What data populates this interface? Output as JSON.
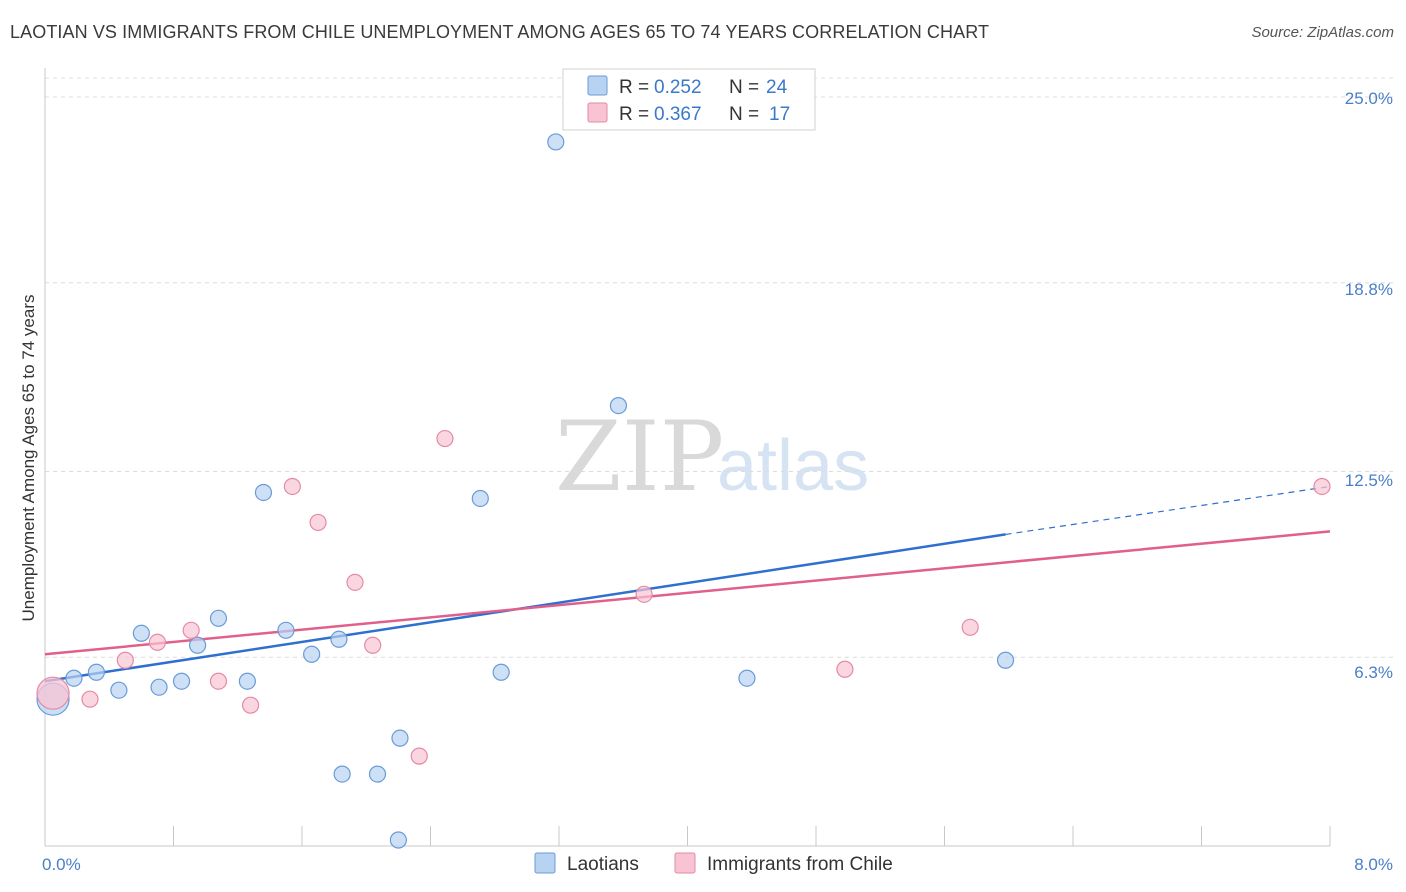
{
  "title": "LAOTIAN VS IMMIGRANTS FROM CHILE UNEMPLOYMENT AMONG AGES 65 TO 74 YEARS CORRELATION CHART",
  "source": "Source: ZipAtlas.com",
  "watermark": {
    "part1": "ZIP",
    "part2": "atlas"
  },
  "colors": {
    "laotian_fill": "#b8d3f2",
    "laotian_stroke": "#6a9bd8",
    "laotian_line": "#2f6fcf",
    "chile_fill": "#f8c4d4",
    "chile_stroke": "#e58aa6",
    "chile_line": "#e0608c",
    "grid": "#dcdcdc",
    "axis_label": "#4a7fc8"
  },
  "legend": {
    "rows": [
      {
        "r_label": "R =",
        "r_value": "0.252",
        "n_label": "N =",
        "n_value": "24"
      },
      {
        "r_label": "R =",
        "r_value": "0.367",
        "n_label": "N =",
        "n_value": "17"
      }
    ]
  },
  "chart_data": {
    "type": "scatter",
    "title": "LAOTIAN VS IMMIGRANTS FROM CHILE UNEMPLOYMENT AMONG AGES 65 TO 74 YEARS CORRELATION CHART",
    "xlabel": "",
    "ylabel": "Unemployment Among Ages 65 to 74 years",
    "xlim": [
      0,
      8.0
    ],
    "ylim": [
      0,
      25.0
    ],
    "x_tick_labels": [
      "0.0%",
      "8.0%"
    ],
    "y_tick_labels": [
      "25.0%",
      "18.8%",
      "12.5%",
      "6.3%"
    ],
    "y_ticks": [
      25.0,
      18.8,
      12.5,
      6.3
    ],
    "grid": true,
    "legend_position": "bottom-center",
    "series": [
      {
        "name": "Laotians",
        "points": [
          {
            "x": 0.05,
            "y": 4.9,
            "big": true
          },
          {
            "x": 0.18,
            "y": 5.6
          },
          {
            "x": 0.32,
            "y": 5.8
          },
          {
            "x": 0.46,
            "y": 5.2
          },
          {
            "x": 0.6,
            "y": 7.1
          },
          {
            "x": 0.71,
            "y": 5.3
          },
          {
            "x": 0.85,
            "y": 5.5
          },
          {
            "x": 0.95,
            "y": 6.7
          },
          {
            "x": 1.08,
            "y": 7.6
          },
          {
            "x": 1.26,
            "y": 5.5
          },
          {
            "x": 1.36,
            "y": 11.8
          },
          {
            "x": 1.5,
            "y": 7.2
          },
          {
            "x": 1.66,
            "y": 6.4
          },
          {
            "x": 1.83,
            "y": 6.9
          },
          {
            "x": 1.85,
            "y": 2.4
          },
          {
            "x": 2.07,
            "y": 2.4
          },
          {
            "x": 2.21,
            "y": 3.6
          },
          {
            "x": 2.2,
            "y": 0.2
          },
          {
            "x": 2.71,
            "y": 11.6
          },
          {
            "x": 2.84,
            "y": 5.8
          },
          {
            "x": 3.18,
            "y": 23.5
          },
          {
            "x": 3.57,
            "y": 14.7
          },
          {
            "x": 4.37,
            "y": 5.6
          },
          {
            "x": 5.98,
            "y": 6.2
          }
        ],
        "trend": {
          "x0": 0.0,
          "y0": 5.5,
          "x1": 5.98,
          "y1": 10.4,
          "dash_to_x": 8.0,
          "dash_to_y": 12.0
        }
      },
      {
        "name": "Immigrants from Chile",
        "points": [
          {
            "x": 0.05,
            "y": 5.1,
            "big": true
          },
          {
            "x": 0.28,
            "y": 4.9
          },
          {
            "x": 0.5,
            "y": 6.2
          },
          {
            "x": 0.7,
            "y": 6.8
          },
          {
            "x": 0.91,
            "y": 7.2
          },
          {
            "x": 1.08,
            "y": 5.5
          },
          {
            "x": 1.28,
            "y": 4.7
          },
          {
            "x": 1.54,
            "y": 12.0
          },
          {
            "x": 1.7,
            "y": 10.8
          },
          {
            "x": 1.93,
            "y": 8.8
          },
          {
            "x": 2.04,
            "y": 6.7
          },
          {
            "x": 2.33,
            "y": 3.0
          },
          {
            "x": 2.49,
            "y": 13.6
          },
          {
            "x": 3.73,
            "y": 8.4
          },
          {
            "x": 4.98,
            "y": 5.9
          },
          {
            "x": 5.76,
            "y": 7.3
          },
          {
            "x": 7.95,
            "y": 12.0
          }
        ],
        "trend": {
          "x0": 0.0,
          "y0": 6.4,
          "x1": 8.0,
          "y1": 10.5
        }
      }
    ]
  }
}
